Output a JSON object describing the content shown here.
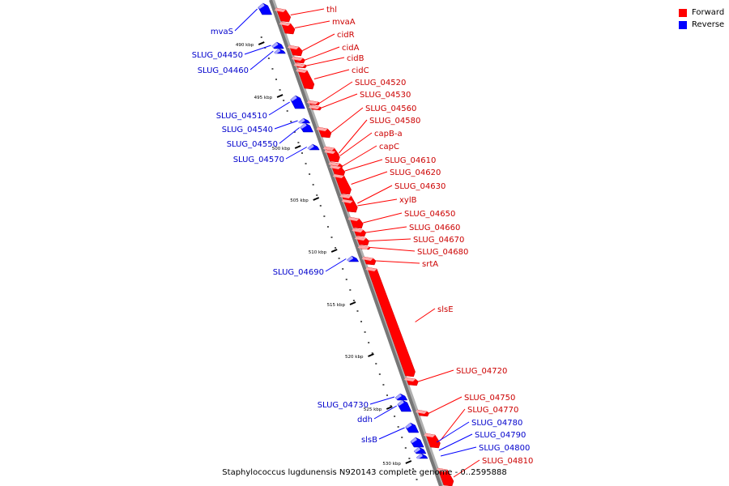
{
  "caption": "Staphylococcus lugdunensis N920143 complete genome - 0..2595888",
  "legend": [
    {
      "label": "Forward",
      "color": "#ff0000"
    },
    {
      "label": "Reverse",
      "color": "#0000ff"
    }
  ],
  "ticks": [
    {
      "label": "490 kbp",
      "at": 490
    },
    {
      "label": "495 kbp",
      "at": 495
    },
    {
      "label": "500 kbp",
      "at": 500
    },
    {
      "label": "505 kbp",
      "at": 505
    },
    {
      "label": "510 kbp",
      "at": 510
    },
    {
      "label": "515 kbp",
      "at": 515
    },
    {
      "label": "520 kbp",
      "at": 520
    },
    {
      "label": "525 kbp",
      "at": 525
    },
    {
      "label": "530 kbp",
      "at": 530
    }
  ],
  "genes_forward": [
    {
      "name": "thl"
    },
    {
      "name": "mvaA"
    },
    {
      "name": "cidR"
    },
    {
      "name": "cidA"
    },
    {
      "name": "cidB"
    },
    {
      "name": "cidC"
    },
    {
      "name": "SLUG_04520"
    },
    {
      "name": "SLUG_04530"
    },
    {
      "name": "SLUG_04560"
    },
    {
      "name": "SLUG_04580"
    },
    {
      "name": "capB-a"
    },
    {
      "name": "capC"
    },
    {
      "name": "SLUG_04610"
    },
    {
      "name": "SLUG_04620"
    },
    {
      "name": "SLUG_04630"
    },
    {
      "name": "xylB"
    },
    {
      "name": "SLUG_04650"
    },
    {
      "name": "SLUG_04660"
    },
    {
      "name": "SLUG_04670"
    },
    {
      "name": "SLUG_04680"
    },
    {
      "name": "srtA"
    },
    {
      "name": "slsE"
    },
    {
      "name": "SLUG_04720"
    },
    {
      "name": "SLUG_04750"
    },
    {
      "name": "SLUG_04770"
    },
    {
      "name": "SLUG_04810"
    }
  ],
  "genes_reverse": [
    {
      "name": "mvaS"
    },
    {
      "name": "SLUG_04450"
    },
    {
      "name": "SLUG_04460"
    },
    {
      "name": "SLUG_04510"
    },
    {
      "name": "SLUG_04540"
    },
    {
      "name": "SLUG_04550"
    },
    {
      "name": "SLUG_04570"
    },
    {
      "name": "SLUG_04690"
    },
    {
      "name": "SLUG_04730"
    },
    {
      "name": "ddh"
    },
    {
      "name": "slsB"
    },
    {
      "name": "SLUG_04780"
    },
    {
      "name": "SLUG_04790"
    },
    {
      "name": "SLUG_04800"
    }
  ]
}
